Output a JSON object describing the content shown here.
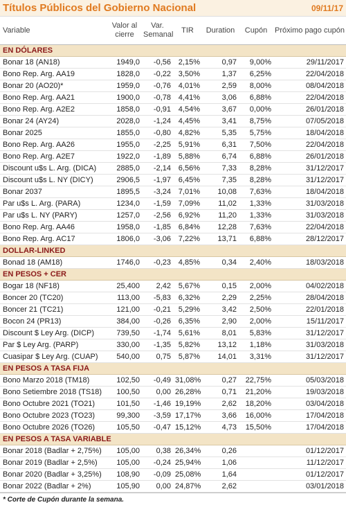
{
  "header": {
    "title": "Títulos Públicos del Gobierno Nacional",
    "date": "09/11/17"
  },
  "table": {
    "columns": [
      "Variable",
      "Valor al cierre",
      "Var. Semanal",
      "TIR",
      "Duration",
      "Cupón",
      "Próximo pago cupón"
    ],
    "sections": [
      {
        "title": "EN DÓLARES",
        "rows": [
          [
            "Bonar 18 (AN18)",
            "1949,0",
            "-0,56",
            "2,15%",
            "0,97",
            "9,00%",
            "29/11/2017"
          ],
          [
            "Bono Rep. Arg. AA19",
            "1828,0",
            "-0,22",
            "3,50%",
            "1,37",
            "6,25%",
            "22/04/2018"
          ],
          [
            "Bonar 20 (AO20)*",
            "1959,0",
            "-0,76",
            "4,01%",
            "2,59",
            "8,00%",
            "08/04/2018"
          ],
          [
            "Bono Rep. Arg. AA21",
            "1900,0",
            "-0,78",
            "4,41%",
            "3,06",
            "6,88%",
            "22/04/2018"
          ],
          [
            "Bono Rep. Arg. A2E2",
            "1858,0",
            "-0,91",
            "4,54%",
            "3,67",
            "0,00%",
            "26/01/2018"
          ],
          [
            "Bonar 24 (AY24)",
            "2028,0",
            "-1,24",
            "4,45%",
            "3,41",
            "8,75%",
            "07/05/2018"
          ],
          [
            "Bonar 2025",
            "1855,0",
            "-0,80",
            "4,82%",
            "5,35",
            "5,75%",
            "18/04/2018"
          ],
          [
            "Bono Rep. Arg. AA26",
            "1955,0",
            "-2,25",
            "5,91%",
            "6,31",
            "7,50%",
            "22/04/2018"
          ],
          [
            "Bono Rep. Arg. A2E7",
            "1922,0",
            "-1,89",
            "5,88%",
            "6,74",
            "6,88%",
            "26/01/2018"
          ],
          [
            "Discount u$s L. Arg. (DICA)",
            "2885,0",
            "-2,14",
            "6,56%",
            "7,33",
            "8,28%",
            "31/12/2017"
          ],
          [
            "Discount u$s L. NY (DICY)",
            "2906,5",
            "-1,97",
            "6,45%",
            "7,35",
            "8,28%",
            "31/12/2017"
          ],
          [
            "Bonar 2037",
            "1895,5",
            "-3,24",
            "7,01%",
            "10,08",
            "7,63%",
            "18/04/2018"
          ],
          [
            "Par u$s L. Arg. (PARA)",
            "1234,0",
            "-1,59",
            "7,09%",
            "11,02",
            "1,33%",
            "31/03/2018"
          ],
          [
            "Par u$s L. NY (PARY)",
            "1257,0",
            "-2,56",
            "6,92%",
            "11,20",
            "1,33%",
            "31/03/2018"
          ],
          [
            "Bono Rep. Arg. AA46",
            "1958,0",
            "-1,85",
            "6,84%",
            "12,28",
            "7,63%",
            "22/04/2018"
          ],
          [
            "Bono Rep. Arg. AC17",
            "1806,0",
            "-3,06",
            "7,22%",
            "13,71",
            "6,88%",
            "28/12/2017"
          ]
        ]
      },
      {
        "title": "DOLLAR-LINKED",
        "rows": [
          [
            "Bonad 18 (AM18)",
            "1746,0",
            "-0,23",
            "4,85%",
            "0,34",
            "2,40%",
            "18/03/2018"
          ]
        ]
      },
      {
        "title": "EN PESOS + CER",
        "rows": [
          [
            "Bogar 18 (NF18)",
            "25,400",
            "2,42",
            "5,67%",
            "0,15",
            "2,00%",
            "04/02/2018"
          ],
          [
            "Boncer 20 (TC20)",
            "113,00",
            "-5,83",
            "6,32%",
            "2,29",
            "2,25%",
            "28/04/2018"
          ],
          [
            "Boncer 21 (TC21)",
            "121,00",
            "-0,21",
            "5,29%",
            "3,42",
            "2,50%",
            "22/01/2018"
          ],
          [
            "Bocon 24 (PR13)",
            "384,00",
            "-0,26",
            "6,35%",
            "2,90",
            "2,00%",
            "15/11/2017"
          ],
          [
            "Discount $ Ley Arg. (DICP)",
            "739,50",
            "-1,74",
            "5,61%",
            "8,01",
            "5,83%",
            "31/12/2017"
          ],
          [
            "Par $ Ley Arg. (PARP)",
            "330,00",
            "-1,35",
            "5,82%",
            "13,12",
            "1,18%",
            "31/03/2018"
          ],
          [
            "Cuasipar $ Ley Arg. (CUAP)",
            "540,00",
            "0,75",
            "5,87%",
            "14,01",
            "3,31%",
            "31/12/2017"
          ]
        ]
      },
      {
        "title": "EN PESOS A TASA FIJA",
        "rows": [
          [
            "Bono Marzo 2018 (TM18)",
            "102,50",
            "-0,49",
            "31,08%",
            "0,27",
            "22,75%",
            "05/03/2018"
          ],
          [
            "Bono Setiembre 2018 (TS18)",
            "100,50",
            "0,00",
            "26,28%",
            "0,71",
            "21,20%",
            "19/03/2018"
          ],
          [
            "Bono Octubre 2021 (TO21)",
            "101,50",
            "-1,46",
            "19,19%",
            "2,62",
            "18,20%",
            "03/04/2018"
          ],
          [
            "Bono Octubre 2023 (TO23)",
            "99,300",
            "-3,59",
            "17,17%",
            "3,66",
            "16,00%",
            "17/04/2018"
          ],
          [
            "Bono Octubre 2026 (TO26)",
            "105,50",
            "-0,47",
            "15,12%",
            "4,73",
            "15,50%",
            "17/04/2018"
          ]
        ]
      },
      {
        "title": "EN PESOS A TASA VARIABLE",
        "rows": [
          [
            "Bonar 2018 (Badlar + 2,75%)",
            "105,00",
            "0,38",
            "26,34%",
            "0,26",
            null,
            "01/12/2017"
          ],
          [
            "Bonar 2019 (Badlar + 2,5%)",
            "105,00",
            "-0,24",
            "25,94%",
            "1,06",
            null,
            "11/12/2017"
          ],
          [
            "Bonar 2020 (Badlar + 3,25%)",
            "108,90",
            "-0,09",
            "25,08%",
            "1,64",
            null,
            "01/12/2017"
          ],
          [
            "Bonar 2022 (Badlar + 2%)",
            "105,90",
            "0,00",
            "24,87%",
            "2,62",
            null,
            "03/01/2018"
          ]
        ]
      }
    ]
  },
  "footnote": "* Corte de Cupón durante la semana."
}
